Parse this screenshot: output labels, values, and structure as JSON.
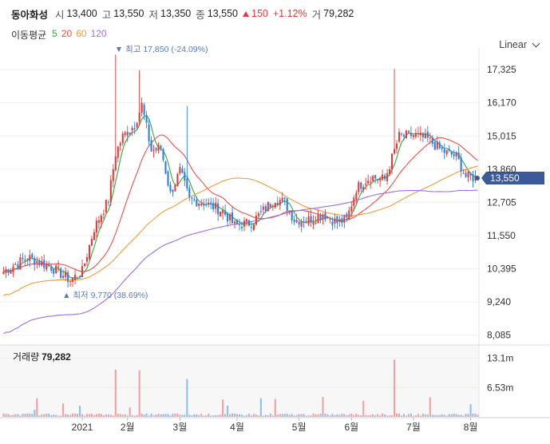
{
  "header": {
    "name": "동아화성",
    "open_label": "시",
    "open": "13,400",
    "high_label": "고",
    "high": "13,550",
    "low_label": "저",
    "low": "13,350",
    "close_label": "종",
    "close": "13,550",
    "change": "150",
    "change_pct": "+1.12%",
    "volume_label": "거",
    "volume": "79,282"
  },
  "moving_average": {
    "label": "이동평균",
    "periods": [
      {
        "value": "5",
        "color": "#3aa53a"
      },
      {
        "value": "20",
        "color": "#e8524a"
      },
      {
        "value": "60",
        "color": "#f39a3c"
      },
      {
        "value": "120",
        "color": "#9c6ee8"
      }
    ]
  },
  "scale_mode": "Linear",
  "annotations": {
    "high": "최고 17,850 (-24.09%)",
    "low": "최저 9,770 (38.69%)"
  },
  "current_price_tag": "13,550",
  "volume_panel": {
    "label": "거래량",
    "value": "79,282"
  },
  "colors": {
    "up": "#e03c3c",
    "down": "#2a7fe0",
    "tag_bg": "#3c5a9a"
  },
  "chart_data": {
    "type": "candlestick",
    "price_axis": {
      "min": 7800,
      "max": 17800,
      "ticks": [
        {
          "value": 17325,
          "label": "17,325"
        },
        {
          "value": 16170,
          "label": "16,170"
        },
        {
          "value": 15015,
          "label": "15,015"
        },
        {
          "value": 13860,
          "label": "13,860"
        },
        {
          "value": 12705,
          "label": "12,705"
        },
        {
          "value": 11550,
          "label": "11,550"
        },
        {
          "value": 10395,
          "label": "10,395"
        },
        {
          "value": 9240,
          "label": "9,240"
        },
        {
          "value": 8085,
          "label": "8,085"
        }
      ]
    },
    "volume_axis": {
      "min": 0,
      "max": 16000000,
      "ticks": [
        {
          "value": 13100000,
          "label": "13.1m"
        },
        {
          "value": 6530000,
          "label": "6.53m"
        }
      ]
    },
    "x_ticks": [
      {
        "index": 33,
        "label": "2021"
      },
      {
        "index": 52,
        "label": "2월"
      },
      {
        "index": 74,
        "label": "3월"
      },
      {
        "index": 98,
        "label": "4월"
      },
      {
        "index": 124,
        "label": "5월"
      },
      {
        "index": 146,
        "label": "6월"
      },
      {
        "index": 172,
        "label": "7월"
      },
      {
        "index": 196,
        "label": "8월"
      }
    ],
    "high_point": {
      "index": 47,
      "price": 17850
    },
    "low_point": {
      "index": 28,
      "price": 9770
    },
    "key_closes": [
      [
        0,
        10300
      ],
      [
        10,
        10800
      ],
      [
        20,
        10450
      ],
      [
        28,
        10000
      ],
      [
        33,
        10300
      ],
      [
        38,
        11800
      ],
      [
        44,
        12800
      ],
      [
        47,
        14400
      ],
      [
        50,
        15000
      ],
      [
        55,
        15400
      ],
      [
        58,
        16100
      ],
      [
        62,
        14500
      ],
      [
        66,
        14600
      ],
      [
        70,
        13000
      ],
      [
        74,
        13800
      ],
      [
        78,
        12800
      ],
      [
        84,
        12700
      ],
      [
        92,
        12400
      ],
      [
        97,
        11900
      ],
      [
        104,
        12000
      ],
      [
        110,
        12500
      ],
      [
        114,
        12850
      ],
      [
        118,
        12700
      ],
      [
        122,
        12100
      ],
      [
        128,
        12100
      ],
      [
        134,
        12300
      ],
      [
        140,
        12000
      ],
      [
        144,
        12100
      ],
      [
        148,
        13200
      ],
      [
        154,
        13600
      ],
      [
        160,
        13500
      ],
      [
        166,
        15000
      ],
      [
        172,
        15050
      ],
      [
        178,
        14900
      ],
      [
        184,
        14500
      ],
      [
        190,
        14300
      ],
      [
        194,
        13600
      ],
      [
        199,
        13550
      ]
    ],
    "spikes": [
      {
        "index": 47,
        "high": 17850
      },
      {
        "index": 57,
        "high": 17300
      },
      {
        "index": 77,
        "high": 16050
      },
      {
        "index": 164,
        "high": 17350
      }
    ]
  }
}
